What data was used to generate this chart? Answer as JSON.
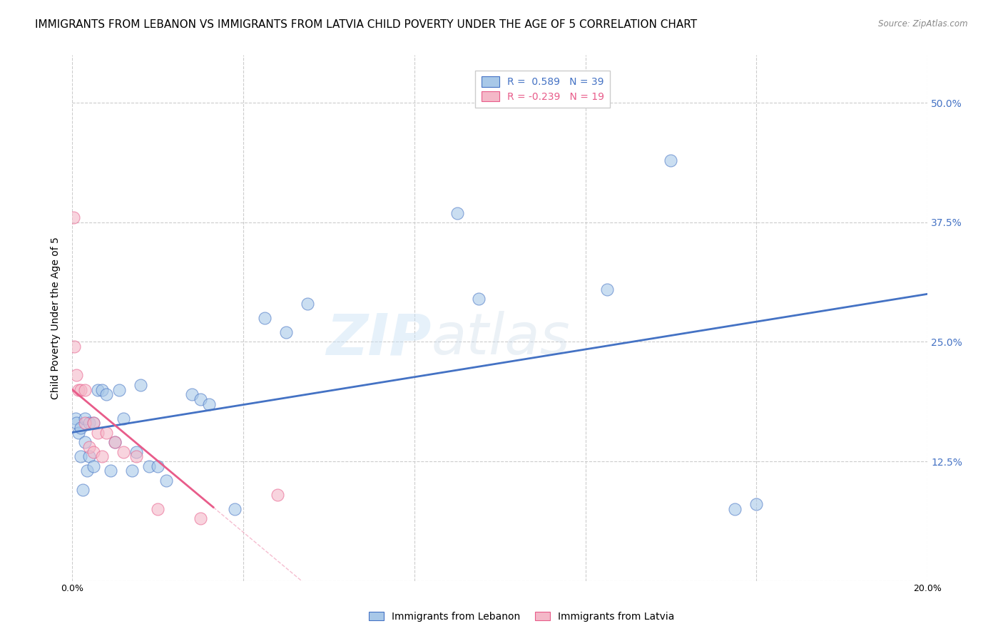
{
  "title": "IMMIGRANTS FROM LEBANON VS IMMIGRANTS FROM LATVIA CHILD POVERTY UNDER THE AGE OF 5 CORRELATION CHART",
  "source": "Source: ZipAtlas.com",
  "ylabel": "Child Poverty Under the Age of 5",
  "xlabel_lebanon": "Immigrants from Lebanon",
  "xlabel_latvia": "Immigrants from Latvia",
  "xlim": [
    0.0,
    0.2
  ],
  "ylim": [
    0.0,
    0.55
  ],
  "yticks": [
    0.0,
    0.125,
    0.25,
    0.375,
    0.5
  ],
  "xticks": [
    0.0,
    0.04,
    0.08,
    0.12,
    0.16,
    0.2
  ],
  "R_lebanon": 0.589,
  "N_lebanon": 39,
  "R_latvia": -0.239,
  "N_latvia": 19,
  "color_lebanon": "#a8c8e8",
  "color_latvia": "#f4b8c8",
  "color_line_lebanon": "#4472c4",
  "color_line_latvia": "#e85c8a",
  "background_color": "#ffffff",
  "grid_color": "#cccccc",
  "lebanon_x": [
    0.0008,
    0.001,
    0.0015,
    0.002,
    0.002,
    0.0025,
    0.003,
    0.003,
    0.0035,
    0.004,
    0.004,
    0.005,
    0.005,
    0.006,
    0.007,
    0.008,
    0.009,
    0.01,
    0.011,
    0.012,
    0.014,
    0.015,
    0.016,
    0.018,
    0.02,
    0.022,
    0.028,
    0.03,
    0.032,
    0.038,
    0.045,
    0.05,
    0.055,
    0.09,
    0.095,
    0.125,
    0.14,
    0.155,
    0.16
  ],
  "lebanon_y": [
    0.17,
    0.165,
    0.155,
    0.16,
    0.13,
    0.095,
    0.17,
    0.145,
    0.115,
    0.165,
    0.13,
    0.165,
    0.12,
    0.2,
    0.2,
    0.195,
    0.115,
    0.145,
    0.2,
    0.17,
    0.115,
    0.135,
    0.205,
    0.12,
    0.12,
    0.105,
    0.195,
    0.19,
    0.185,
    0.075,
    0.275,
    0.26,
    0.29,
    0.385,
    0.295,
    0.305,
    0.44,
    0.075,
    0.08
  ],
  "latvia_x": [
    0.0003,
    0.0005,
    0.001,
    0.0015,
    0.002,
    0.003,
    0.003,
    0.004,
    0.005,
    0.005,
    0.006,
    0.007,
    0.008,
    0.01,
    0.012,
    0.015,
    0.02,
    0.03,
    0.048
  ],
  "latvia_y": [
    0.38,
    0.245,
    0.215,
    0.2,
    0.2,
    0.165,
    0.2,
    0.14,
    0.165,
    0.135,
    0.155,
    0.13,
    0.155,
    0.145,
    0.135,
    0.13,
    0.075,
    0.065,
    0.09
  ],
  "watermark_zi": "ZIP",
  "watermark_atlas": "atlas",
  "title_fontsize": 11,
  "axis_label_fontsize": 10,
  "tick_fontsize": 9,
  "legend_fontsize": 10
}
